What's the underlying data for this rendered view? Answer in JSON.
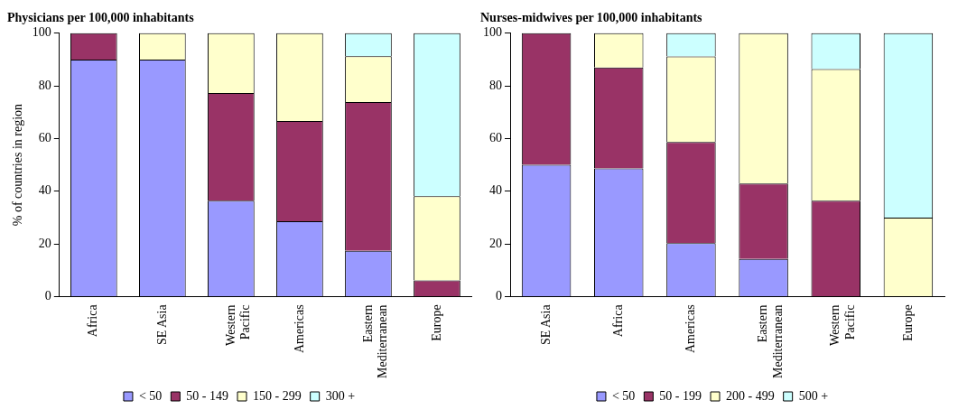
{
  "chart_data": [
    {
      "type": "bar",
      "title": "Physicians per 100,000 inhabitants",
      "ylabel": "% of countries in region",
      "categories": [
        "Africa",
        "SE Asia",
        "Western Pacific",
        "Americas",
        "Eastern Mediterranean",
        "Europe"
      ],
      "stacked": true,
      "ylim": [
        0,
        100
      ],
      "yticks": [
        0,
        20,
        40,
        60,
        80,
        100
      ],
      "grid": false,
      "legend": "bottom",
      "series": [
        {
          "name": "< 50",
          "color": "#9999ff",
          "values": [
            90,
            90,
            36.4,
            28.6,
            17.4,
            0
          ]
        },
        {
          "name": "50 - 149",
          "color": "#993366",
          "values": [
            10,
            0,
            40.9,
            38.1,
            56.5,
            6.1
          ]
        },
        {
          "name": "150 - 299",
          "color": "#ffffcc",
          "values": [
            0,
            10,
            22.7,
            33.3,
            17.4,
            32
          ]
        },
        {
          "name": "300 +",
          "color": "#ccffff",
          "values": [
            0,
            0,
            0,
            0,
            8.7,
            61.9
          ]
        }
      ]
    },
    {
      "type": "bar",
      "title": "Nurses-midwives per 100,000 inhabitants",
      "categories": [
        "SE Asia",
        "Africa",
        "Americas",
        "Eastern Mediterranean",
        "Western Pacific",
        "Europe"
      ],
      "stacked": true,
      "ylim": [
        0,
        100
      ],
      "yticks": [
        0,
        20,
        40,
        60,
        80,
        100
      ],
      "grid": false,
      "legend": "bottom",
      "series": [
        {
          "name": "< 50",
          "color": "#9999ff",
          "values": [
            50,
            48.7,
            20.3,
            14.3,
            0,
            0
          ]
        },
        {
          "name": "50 - 199",
          "color": "#993366",
          "values": [
            50,
            38.3,
            38.4,
            28.6,
            36.4,
            0
          ]
        },
        {
          "name": "200 - 499",
          "color": "#ffffcc",
          "values": [
            0,
            13,
            32.5,
            57.1,
            50,
            30
          ]
        },
        {
          "name": "500 +",
          "color": "#ccffff",
          "values": [
            0,
            0,
            8.8,
            0,
            13.6,
            70
          ]
        }
      ]
    }
  ]
}
